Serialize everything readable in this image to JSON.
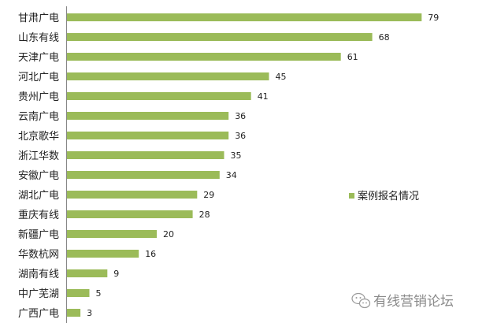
{
  "chart_data": {
    "type": "bar",
    "orientation": "horizontal",
    "categories": [
      "甘肃广电",
      "山东有线",
      "天津广电",
      "河北广电",
      "贵州广电",
      "云南广电",
      "北京歌华",
      "浙江华数",
      "安徽广电",
      "湖北广电",
      "重庆有线",
      "新疆广电",
      "华数杭网",
      "湖南有线",
      "中广芜湖",
      "广西广电"
    ],
    "series": [
      {
        "name": "案例报名情况",
        "values": [
          79,
          68,
          61,
          45,
          41,
          36,
          36,
          35,
          34,
          29,
          28,
          20,
          16,
          9,
          5,
          3
        ],
        "color": "#9bbb59"
      }
    ],
    "xlim": [
      0,
      80
    ],
    "grid": false,
    "legend": {
      "position": "right",
      "marker_color": "#9bbb59"
    }
  },
  "watermark": {
    "text": "有线营销论坛",
    "icon": "wechat-bubble-icon"
  }
}
